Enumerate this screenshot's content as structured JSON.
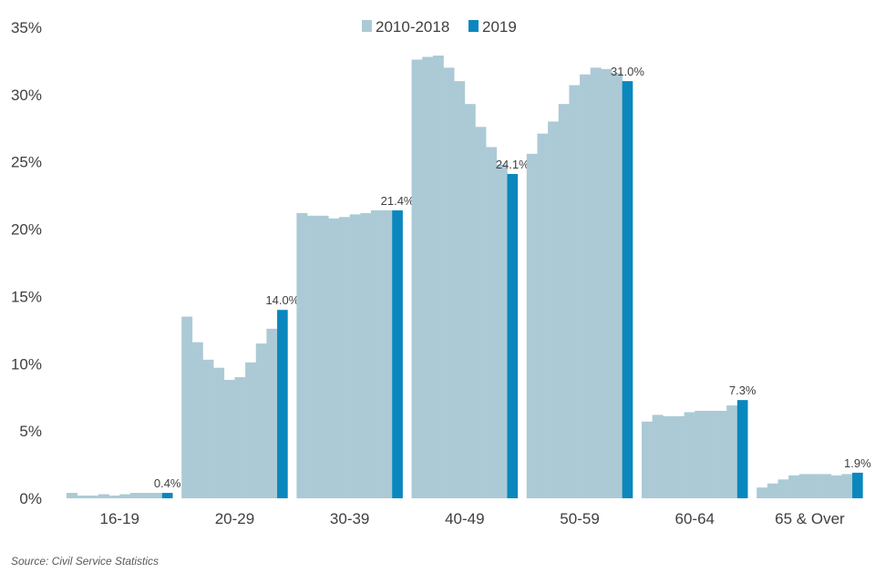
{
  "chart_data": {
    "type": "bar",
    "ylim": [
      0,
      35
    ],
    "yticks": [
      "0%",
      "5%",
      "10%",
      "15%",
      "20%",
      "25%",
      "30%",
      "35%"
    ],
    "grid": false,
    "legend_position": "top-center",
    "legend": [
      {
        "label": "2010-2018",
        "color": "#abcad5"
      },
      {
        "label": "2019",
        "color": "#0a87bd"
      }
    ],
    "colors": {
      "history": "#abcad5",
      "current": "#0a87bd"
    },
    "categories": [
      "16-19",
      "20-29",
      "30-39",
      "40-49",
      "50-59",
      "60-64",
      "65 & Over"
    ],
    "series": [
      {
        "name": "2010-2018",
        "values": [
          [
            0.4,
            0.2,
            0.2,
            0.3,
            0.2,
            0.3,
            0.4,
            0.4,
            0.4
          ],
          [
            13.5,
            11.6,
            10.3,
            9.7,
            8.8,
            9.0,
            10.1,
            11.5,
            12.6
          ],
          [
            21.2,
            21.0,
            21.0,
            20.8,
            20.9,
            21.1,
            21.2,
            21.4,
            21.4
          ],
          [
            32.6,
            32.8,
            32.9,
            32.0,
            31.0,
            29.3,
            27.6,
            26.1,
            24.8
          ],
          [
            25.6,
            27.1,
            28.0,
            29.3,
            30.7,
            31.5,
            32.0,
            31.9,
            31.6
          ],
          [
            5.7,
            6.2,
            6.1,
            6.1,
            6.4,
            6.5,
            6.5,
            6.5,
            6.9
          ],
          [
            0.8,
            1.1,
            1.4,
            1.7,
            1.8,
            1.8,
            1.8,
            1.7,
            1.8
          ]
        ]
      },
      {
        "name": "2019",
        "values": [
          0.4,
          14.0,
          21.4,
          24.1,
          31.0,
          7.3,
          1.9
        ]
      }
    ],
    "data_labels": [
      "0.4%",
      "14.0%",
      "21.4%",
      "24.1%",
      "31.0%",
      "7.3%",
      "1.9%"
    ]
  },
  "source": "Source: Civil Service Statistics"
}
